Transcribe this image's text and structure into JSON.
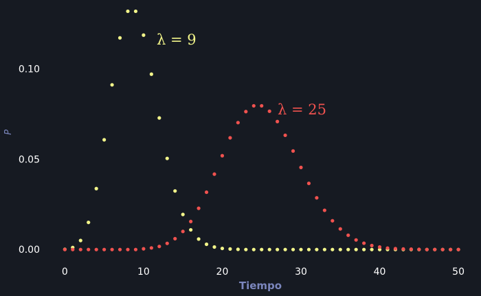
{
  "chart_data": {
    "type": "scatter",
    "title": "",
    "xlabel": "Tiempo",
    "ylabel": "P",
    "xlim": [
      -3,
      52
    ],
    "ylim": [
      -0.006,
      0.135
    ],
    "xticks": [
      0,
      10,
      20,
      30,
      40,
      50
    ],
    "xtick_labels": [
      "0",
      "10",
      "20",
      "30",
      "40",
      "50"
    ],
    "yticks": [
      0.0,
      0.05,
      0.1
    ],
    "ytick_labels": [
      "0.00",
      "0.05",
      "0.10"
    ],
    "grid": false,
    "background": "#161a22",
    "axis_label_color": "#7b86bd",
    "series": [
      {
        "name": "λ = 9",
        "label_text": "λ = 9",
        "color": "#f2f58a",
        "x": [
          0,
          1,
          2,
          3,
          4,
          5,
          6,
          7,
          8,
          9,
          10,
          11,
          12,
          13,
          14,
          15,
          16,
          17,
          18,
          19,
          20,
          21,
          22,
          23,
          24,
          25,
          26,
          27,
          28,
          29,
          30,
          31,
          32,
          33,
          34,
          35,
          36,
          37,
          38,
          39,
          40,
          41,
          42,
          43,
          44,
          45,
          46,
          47,
          48,
          49,
          50
        ],
        "values": [
          0.0001,
          0.0011,
          0.005,
          0.015,
          0.0337,
          0.0607,
          0.0911,
          0.1171,
          0.1318,
          0.1318,
          0.1186,
          0.097,
          0.0728,
          0.0504,
          0.0324,
          0.0194,
          0.0109,
          0.0058,
          0.0029,
          0.0014,
          0.0006,
          0.0003,
          0.0001,
          0.0,
          0.0,
          0.0,
          0.0,
          0.0,
          0.0,
          0.0,
          0.0,
          0.0,
          0.0,
          0.0,
          0.0,
          0.0,
          0.0,
          0.0,
          0.0,
          0.0,
          0.0,
          0.0,
          0.0,
          0.0,
          0.0,
          0.0,
          0.0,
          0.0,
          0.0,
          0.0,
          0.0
        ]
      },
      {
        "name": "λ = 25",
        "label_text": "λ = 25",
        "color": "#f0524f",
        "x": [
          0,
          1,
          2,
          3,
          4,
          5,
          6,
          7,
          8,
          9,
          10,
          11,
          12,
          13,
          14,
          15,
          16,
          17,
          18,
          19,
          20,
          21,
          22,
          23,
          24,
          25,
          26,
          27,
          28,
          29,
          30,
          31,
          32,
          33,
          34,
          35,
          36,
          37,
          38,
          39,
          40,
          41,
          42,
          43,
          44,
          45,
          46,
          47,
          48,
          49,
          50
        ],
        "values": [
          0.0,
          0.0,
          0.0,
          0.0,
          0.0,
          0.0,
          0.0,
          0.0,
          0.0,
          0.0,
          0.0004,
          0.0009,
          0.0017,
          0.0034,
          0.006,
          0.01,
          0.0155,
          0.0228,
          0.0317,
          0.0417,
          0.0519,
          0.0618,
          0.0702,
          0.0763,
          0.0795,
          0.0795,
          0.0765,
          0.0708,
          0.0632,
          0.0545,
          0.0454,
          0.0366,
          0.0286,
          0.0217,
          0.0159,
          0.0114,
          0.0079,
          0.0053,
          0.0035,
          0.0022,
          0.0014,
          0.0008,
          0.0005,
          0.0003,
          0.0002,
          0.0001,
          0.0,
          0.0,
          0.0,
          0.0,
          0.0
        ]
      }
    ]
  }
}
